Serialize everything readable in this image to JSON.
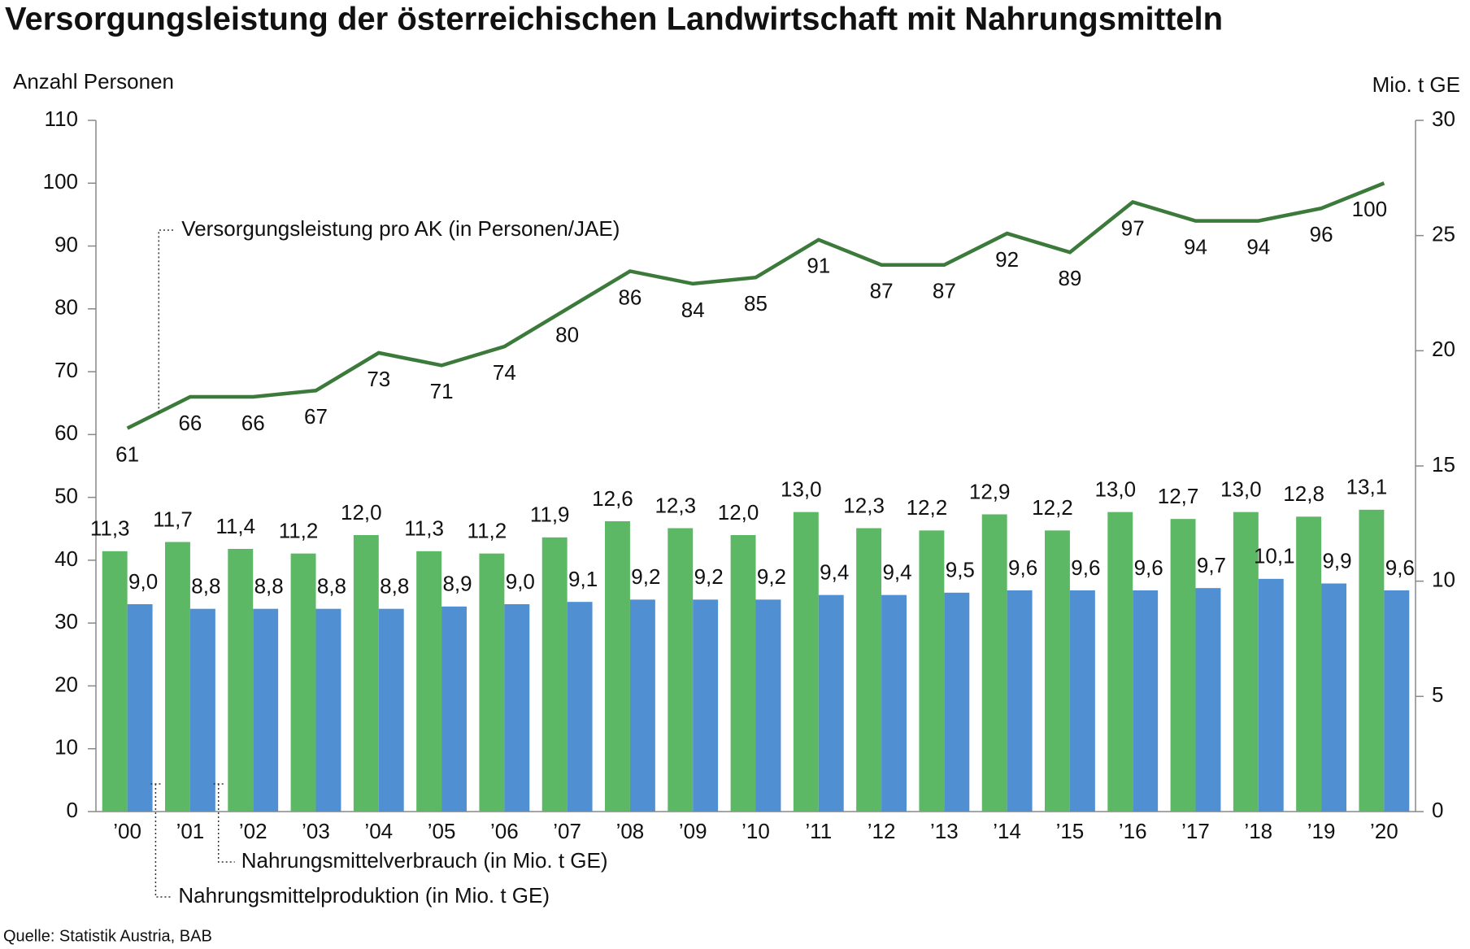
{
  "chart_data": {
    "type": "combo",
    "title": "Versorgungsleistung der österreichischen Landwirtschaft mit Nahrungsmitteln",
    "y_label": "Anzahl Personen",
    "y2_label": "Mio. t GE",
    "source": "Quelle: Statistik Austria, BAB",
    "categories": [
      "’00",
      "’01",
      "’02",
      "’03",
      "’04",
      "’05",
      "’06",
      "’07",
      "’08",
      "’09",
      "’10",
      "’11",
      "’12",
      "’13",
      "’14",
      "’15",
      "’16",
      "’17",
      "’18",
      "’19",
      "’20"
    ],
    "series": [
      {
        "name": "Versorgungsleistung pro AK (in Personen/JAE)",
        "type": "line",
        "color": "#3b7a3b",
        "values": [
          61,
          66,
          66,
          67,
          73,
          71,
          74,
          80,
          86,
          84,
          85,
          91,
          87,
          87,
          92,
          89,
          97,
          94,
          94,
          96,
          100
        ]
      },
      {
        "name": "Nahrungsmittelproduktion (in Mio. t GE)",
        "type": "bar",
        "axis": "y2",
        "color": "#5db865",
        "label_color": "#4a4a14",
        "values": [
          11.3,
          11.7,
          11.4,
          11.2,
          12.0,
          11.3,
          11.2,
          11.9,
          12.6,
          12.3,
          12.0,
          13.0,
          12.3,
          12.2,
          12.9,
          12.2,
          13.0,
          12.7,
          13.0,
          12.8,
          13.1
        ],
        "value_labels": [
          "11,3",
          "11,7",
          "11,4",
          "11,2",
          "12,0",
          "11,3",
          "11,2",
          "11,9",
          "12,6",
          "12,3",
          "12,0",
          "13,0",
          "12,3",
          "12,2",
          "12,9",
          "12,2",
          "13,0",
          "12,7",
          "13,0",
          "12,8",
          "13,1"
        ]
      },
      {
        "name": "Nahrungsmittelverbrauch (in Mio. t GE)",
        "type": "bar",
        "axis": "y2",
        "color": "#4f8fd2",
        "label_color": "#1f3a64",
        "values": [
          9.0,
          8.8,
          8.8,
          8.8,
          8.8,
          8.9,
          9.0,
          9.1,
          9.2,
          9.2,
          9.2,
          9.4,
          9.4,
          9.5,
          9.6,
          9.6,
          9.6,
          9.7,
          10.1,
          9.9,
          9.6
        ],
        "value_labels": [
          "9,0",
          "8,8",
          "8,8",
          "8,8",
          "8,8",
          "8,9",
          "9,0",
          "9,1",
          "9,2",
          "9,2",
          "9,2",
          "9,4",
          "9,4",
          "9,5",
          "9,6",
          "9,6",
          "9,6",
          "9,7",
          "10,1",
          "9,9",
          "9,6"
        ]
      }
    ],
    "ylim": [
      0,
      110
    ],
    "yticks": [
      0,
      10,
      20,
      30,
      40,
      50,
      60,
      70,
      80,
      90,
      100,
      110
    ],
    "y2lim": [
      0,
      30
    ],
    "y2ticks": [
      0,
      5,
      10,
      15,
      20,
      25,
      30
    ],
    "grid": false
  }
}
